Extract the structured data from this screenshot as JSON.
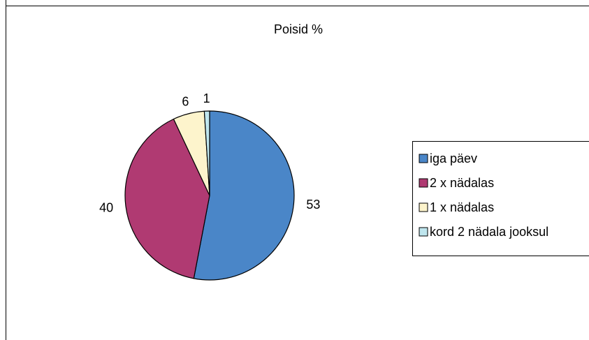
{
  "chart_data": {
    "type": "pie",
    "title": "Poisid %",
    "categories": [
      "iga päev",
      "2 x nädalas",
      "1 x nädalas",
      "kord 2 nädala jooksul"
    ],
    "values": [
      53,
      40,
      6,
      1
    ],
    "data_labels": [
      "53",
      "40",
      "6",
      "1"
    ],
    "colors": [
      "#4a86c8",
      "#b03a72",
      "#fdf4cc",
      "#bfe6ee"
    ],
    "start_angle": "12 o'clock",
    "direction": "clockwise",
    "legend_position": "right",
    "grid": false
  }
}
